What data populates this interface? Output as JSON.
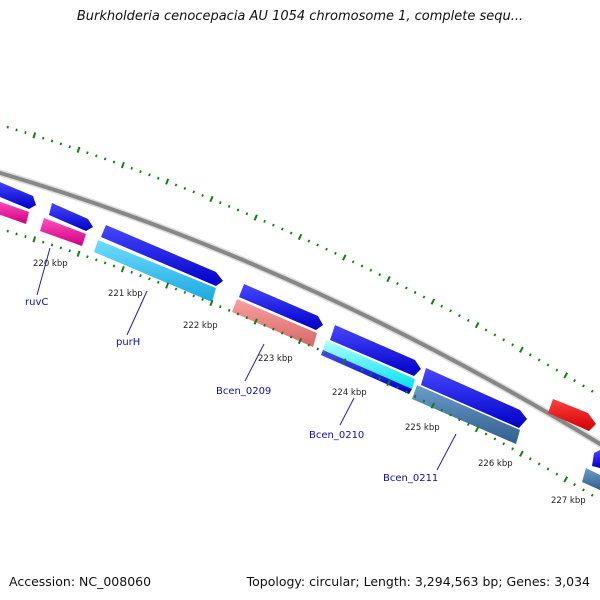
{
  "title": "Burkholderia cenocepacia AU 1054 chromosome 1, complete sequ...",
  "footer": {
    "accession": "Accession: NC_008060",
    "summary": "Topology: circular; Length: 3,294,563 bp; Genes: 3,034"
  },
  "scale_labels": [
    "220 kbp",
    "221 kbp",
    "222 kbp",
    "223 kbp",
    "224 kbp",
    "225 kbp",
    "226 kbp",
    "227 kbp"
  ],
  "gene_labels": [
    "ruvC",
    "purH",
    "Bcen_0209",
    "Bcen_0210",
    "Bcen_0211"
  ],
  "colors": {
    "backbone": "#888888",
    "forward_cds": "#0000ee",
    "reverse_magenta": "#ff1aa0",
    "reverse_cyan": "#33ccff",
    "reverse_salmon": "#f08080",
    "reverse_steel": "#4682b4",
    "forward_red": "#ff0000",
    "ticks": "#108010"
  }
}
